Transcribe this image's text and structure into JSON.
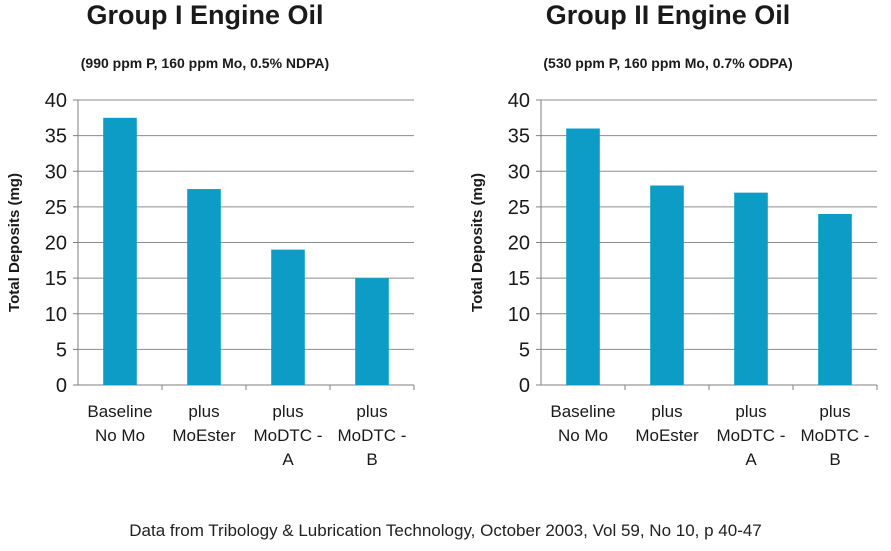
{
  "charts": [
    {
      "title": "Group I Engine Oil",
      "subtitle": "(990 ppm P, 160 ppm Mo, 0.5% NDPA)"
    },
    {
      "title": "Group II Engine Oil",
      "subtitle": "(530 ppm P, 160 ppm Mo, 0.7% ODPA)"
    }
  ],
  "source_note": "Data from Tribology & Lubrication Technology, October 2003, Vol 59, No 10, p 40-47",
  "colors": {
    "bar": "#0d9cc6",
    "grid": "#8c8c8c",
    "axis": "#7f7f7f"
  },
  "chart_data": [
    {
      "type": "bar",
      "title": "Group I Engine Oil",
      "subtitle": "(990 ppm P, 160 ppm Mo, 0.5% NDPA)",
      "categories": [
        [
          "Baseline",
          "No Mo"
        ],
        [
          "plus",
          "MoEster"
        ],
        [
          "plus",
          "MoDTC -",
          "A"
        ],
        [
          "plus",
          "MoDTC -",
          "B"
        ]
      ],
      "values": [
        37.5,
        27.5,
        19,
        15
      ],
      "ylabel": "Total Deposits (mg)",
      "xlabel": "",
      "ylim": [
        0,
        40
      ],
      "yticks": [
        0,
        5,
        10,
        15,
        20,
        25,
        30,
        35,
        40
      ],
      "grid": true
    },
    {
      "type": "bar",
      "title": "Group II Engine Oil",
      "subtitle": "(530 ppm P, 160 ppm Mo, 0.7% ODPA)",
      "categories": [
        [
          "Baseline",
          "No Mo"
        ],
        [
          "plus",
          "MoEster"
        ],
        [
          "plus",
          "MoDTC -",
          "A"
        ],
        [
          "plus",
          "MoDTC -",
          "B"
        ]
      ],
      "values": [
        36,
        28,
        27,
        24
      ],
      "ylabel": "Total Deposits (mg)",
      "xlabel": "",
      "ylim": [
        0,
        40
      ],
      "yticks": [
        0,
        5,
        10,
        15,
        20,
        25,
        30,
        35,
        40
      ],
      "grid": true
    }
  ]
}
